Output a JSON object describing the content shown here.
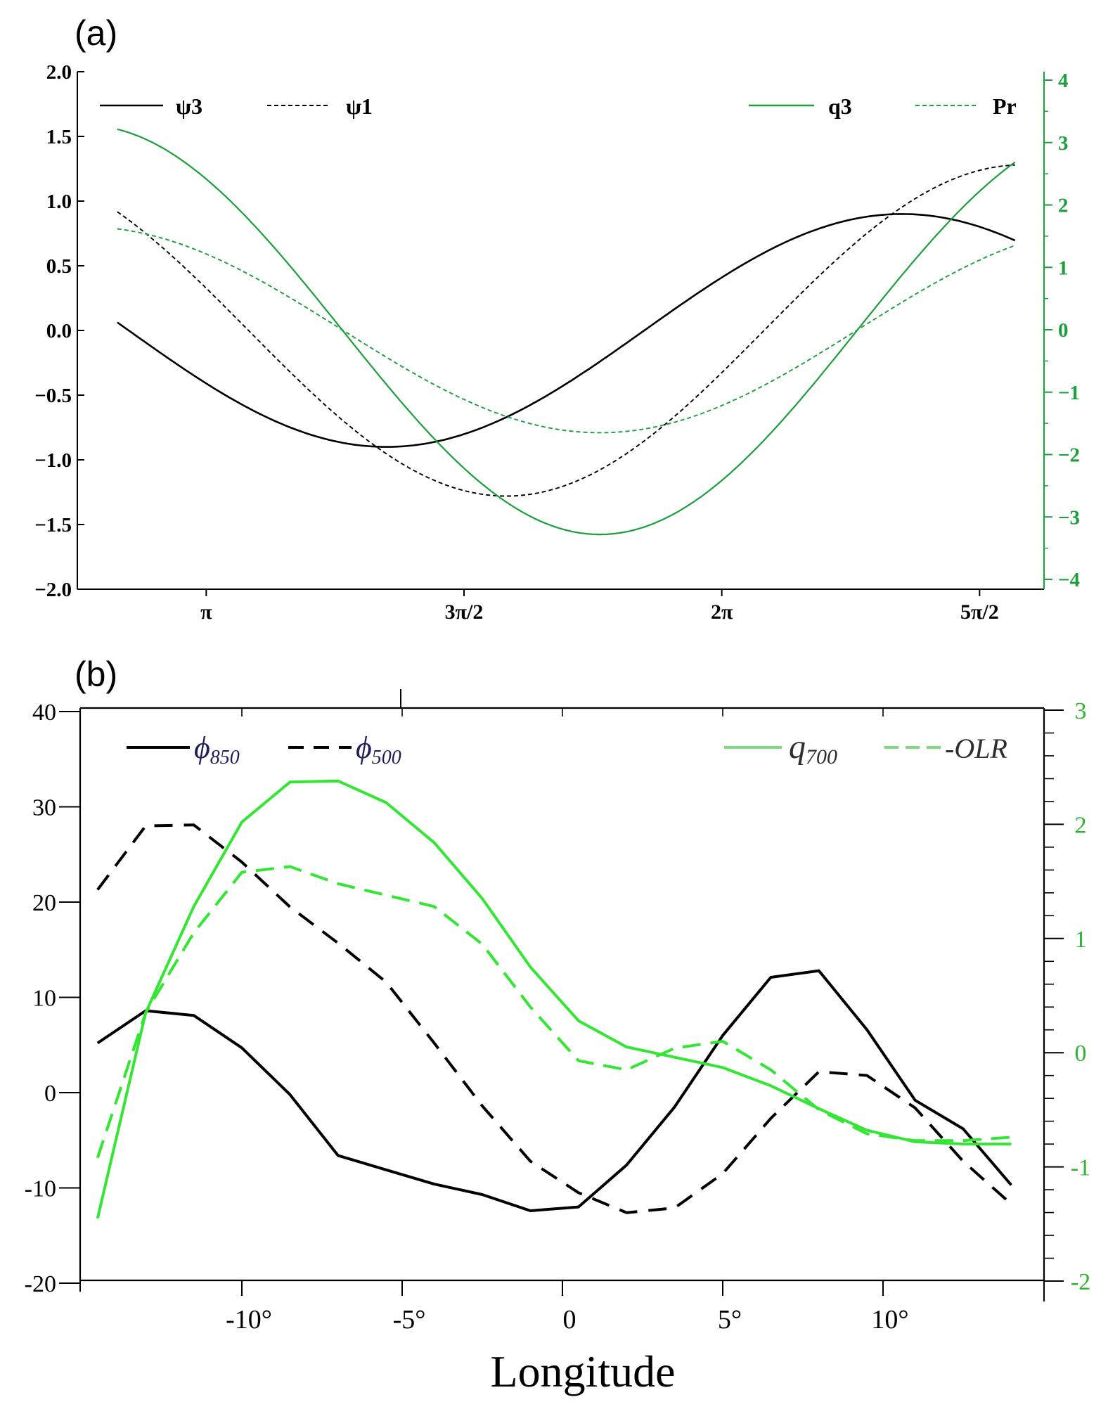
{
  "colors": {
    "black": "#000000",
    "green_a": "#1a9f3a",
    "green_b": "#33e633"
  },
  "chart_data": [
    {
      "panel_label": "(a)",
      "type": "line",
      "x_range": [
        2.3562,
        8.2467
      ],
      "x_ticks": [
        {
          "value": 3.1416,
          "label": "π"
        },
        {
          "value": 4.7124,
          "label": "3π/2"
        },
        {
          "value": 6.2832,
          "label": "2π"
        },
        {
          "value": 7.854,
          "label": "5π/2"
        }
      ],
      "y_left": {
        "range": [
          -2.0,
          2.0
        ],
        "ticks": [
          2.0,
          1.5,
          1.0,
          0.5,
          0.0,
          -0.5,
          -1.0,
          -1.5,
          -2.0
        ],
        "tick_labels": [
          "2.0",
          "1.5",
          "1.0",
          "0.5",
          "0.0",
          "−0.5",
          "−1.0",
          "−1.5",
          "−2.0"
        ]
      },
      "y_right": {
        "range": [
          -4.0,
          4.0
        ],
        "ticks": [
          4,
          3,
          2,
          1,
          0,
          -1,
          -2,
          -3,
          -4
        ],
        "tick_labels": [
          "4",
          "3",
          "2",
          "1",
          "0",
          "−1",
          "−2",
          "−3",
          "−4"
        ]
      },
      "series": [
        {
          "name": "ψ3",
          "axis": "left",
          "style": "solid",
          "color": "#000000",
          "amplitude": 0.9,
          "min_at": 4.24,
          "x_start": 2.6,
          "x_end": 8.07
        },
        {
          "name": "ψ1",
          "axis": "left",
          "style": "dashed",
          "color": "#000000",
          "amplitude": 1.28,
          "min_at": 4.97,
          "x_start": 2.6,
          "x_end": 8.07
        },
        {
          "name": "q3",
          "axis": "right",
          "style": "solid",
          "color": "#1a9f3a",
          "amplitude": 3.28,
          "min_at": 5.54,
          "x_start": 2.6,
          "x_end": 8.07
        },
        {
          "name": "Pr",
          "axis": "right",
          "style": "dashed",
          "color": "#1a9f3a",
          "amplitude": 1.65,
          "min_at": 5.54,
          "x_start": 2.6,
          "x_end": 8.07
        }
      ],
      "legend": {
        "left": [
          "ψ3",
          "ψ1"
        ],
        "right": [
          "q3",
          "Pr"
        ]
      }
    },
    {
      "panel_label": "(b)",
      "type": "line",
      "xlabel": "Longitude",
      "x_range": [
        -15,
        15
      ],
      "x_ticks": [
        {
          "value": -10,
          "label": "-10°"
        },
        {
          "value": -5,
          "label": "-5°"
        },
        {
          "value": 0,
          "label": "0"
        },
        {
          "value": 5,
          "label": "5°"
        },
        {
          "value": 10,
          "label": "10°"
        }
      ],
      "y_left": {
        "range": [
          -20,
          40
        ],
        "ticks": [
          40,
          30,
          20,
          10,
          0,
          -10,
          -20
        ],
        "tick_labels": [
          "40",
          "30",
          "20",
          "10",
          "0",
          "-10",
          "-20"
        ]
      },
      "y_right": {
        "range": [
          -2,
          3
        ],
        "ticks": [
          3,
          2,
          1,
          0,
          -1,
          -2
        ],
        "tick_labels": [
          "3",
          "2",
          "1",
          "0",
          "-1",
          "-2"
        ]
      },
      "x": [
        -14.5,
        -13,
        -11.5,
        -10,
        -8.5,
        -7,
        -5.5,
        -4,
        -2.5,
        -1,
        0.5,
        2,
        3.5,
        5,
        6.5,
        8,
        9.5,
        11,
        12.5,
        14
      ],
      "series": [
        {
          "name": "ϕ850",
          "label_main": "ϕ",
          "label_sub": "850",
          "axis": "left",
          "style": "solid",
          "color": "#000000",
          "values": [
            5.2,
            8.6,
            8.1,
            4.7,
            -0.2,
            -6.6,
            -8.1,
            -9.6,
            -10.7,
            -12.4,
            -12.0,
            -7.6,
            -1.5,
            6.0,
            12.1,
            12.8,
            6.6,
            -0.8,
            -3.8,
            -9.7
          ]
        },
        {
          "name": "ϕ500",
          "label_main": "ϕ",
          "label_sub": "500",
          "axis": "left",
          "style": "dashed",
          "color": "#000000",
          "values": [
            21.3,
            28.0,
            28.1,
            24.2,
            19.5,
            15.7,
            11.6,
            5.2,
            -1.4,
            -7.2,
            -10.5,
            -12.6,
            -12.1,
            -8.5,
            -2.7,
            2.2,
            1.8,
            -1.6,
            -7.2,
            -11.7
          ]
        },
        {
          "name": "q700",
          "label_main": "q",
          "label_sub": "700",
          "axis": "right",
          "style": "solid",
          "color": "#33e633",
          "values": [
            -1.45,
            0.35,
            1.28,
            2.02,
            2.37,
            2.38,
            2.19,
            1.84,
            1.35,
            0.75,
            0.28,
            0.05,
            -0.04,
            -0.13,
            -0.29,
            -0.49,
            -0.68,
            -0.78,
            -0.8,
            -0.8
          ]
        },
        {
          "name": "-OLR",
          "label_main": "-OLR",
          "label_sub": "",
          "axis": "right",
          "style": "dashed",
          "color": "#33e633",
          "values": [
            -0.92,
            0.35,
            1.05,
            1.58,
            1.63,
            1.48,
            1.38,
            1.28,
            0.95,
            0.4,
            -0.07,
            -0.15,
            0.04,
            0.1,
            -0.15,
            -0.5,
            -0.71,
            -0.77,
            -0.77,
            -0.74
          ]
        }
      ]
    }
  ]
}
